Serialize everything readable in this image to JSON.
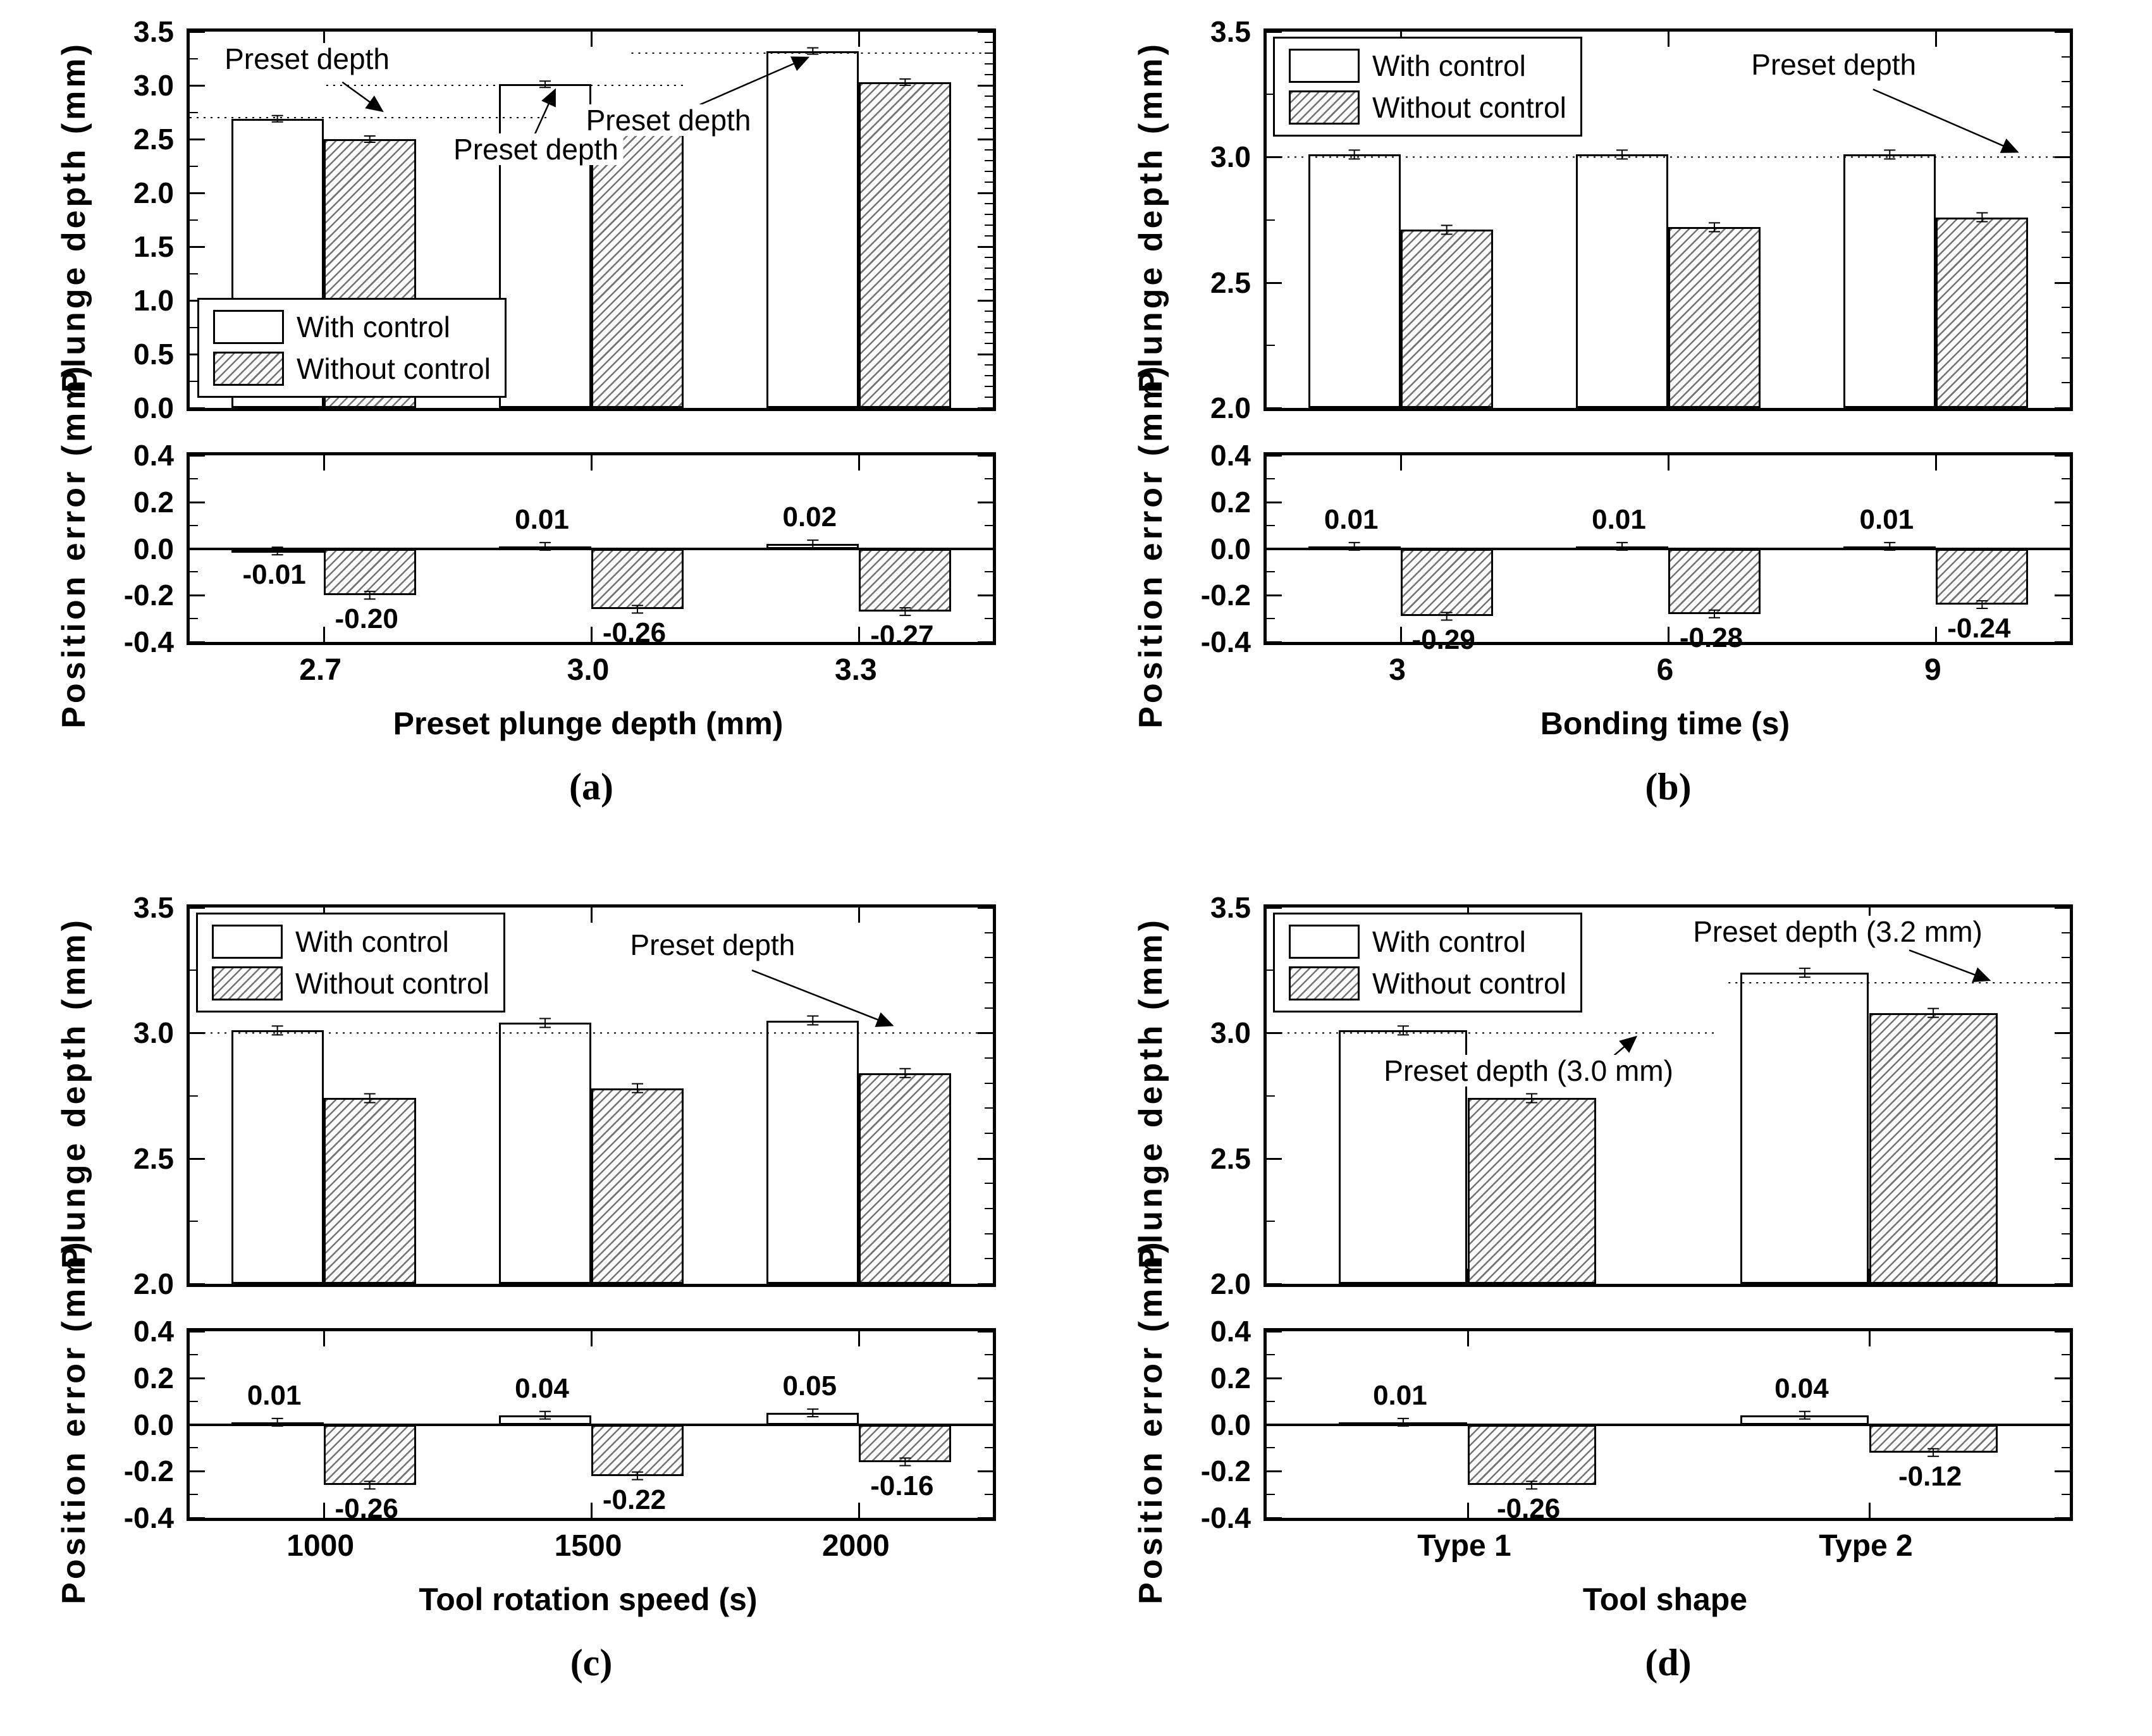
{
  "legend": {
    "items": [
      {
        "label": "With control",
        "style": "plain"
      },
      {
        "label": "Without control",
        "style": "hatch"
      }
    ]
  },
  "colors": {
    "bar_fill": "#ffffff",
    "bar_edge": "#000000",
    "hatch_line": "#000000",
    "dashed_line": "#000000"
  },
  "chart_data": [
    {
      "panel": "a",
      "label": "(a)",
      "depth_chart": {
        "type": "bar",
        "ylabel": "Plunge depth (mm)",
        "ylim": [
          0.0,
          3.5
        ],
        "ytick_step": 0.5,
        "categories": [
          "2.7",
          "3.0",
          "3.3"
        ],
        "series": [
          {
            "name": "With control",
            "style": "plain",
            "values": [
              2.69,
              3.01,
              3.32
            ]
          },
          {
            "name": "Without control",
            "style": "hatch",
            "values": [
              2.5,
              2.74,
              3.03
            ]
          }
        ],
        "preset_lines": [
          {
            "value": 2.7,
            "from": 0.0,
            "to": 0.45
          },
          {
            "value": 3.0,
            "from": 0.17,
            "to": 0.62
          },
          {
            "value": 3.3,
            "from": 0.55,
            "to": 1.0
          }
        ],
        "annotations": [
          {
            "text": "Preset depth",
            "tx": 0.15,
            "tv": 3.2,
            "ax0": 0.19,
            "av0": 3.03,
            "ax1": 0.24,
            "av1": 2.76
          },
          {
            "text": "Preset depth",
            "tx": 0.435,
            "tv": 2.36,
            "ax0": 0.43,
            "av0": 2.55,
            "ax1": 0.455,
            "av1": 2.96
          },
          {
            "text": "Preset depth",
            "tx": 0.6,
            "tv": 2.63,
            "ax0": 0.635,
            "av0": 2.82,
            "ax1": 0.77,
            "av1": 3.26
          }
        ],
        "legend_position": "bottom-left"
      },
      "error_chart": {
        "type": "bar",
        "ylabel": "Position error (mm)",
        "ylim": [
          -0.4,
          0.4
        ],
        "ytick_step": 0.2,
        "categories": [
          "2.7",
          "3.0",
          "3.3"
        ],
        "xlabel": "Preset plunge depth (mm)",
        "series": [
          {
            "name": "With control",
            "style": "plain",
            "values": [
              -0.01,
              0.01,
              0.02
            ],
            "labels": [
              "-0.01",
              "0.01",
              "0.02"
            ]
          },
          {
            "name": "Without control",
            "style": "hatch",
            "values": [
              -0.2,
              -0.26,
              -0.27
            ],
            "labels": [
              "-0.20",
              "-0.26",
              "-0.27"
            ]
          }
        ]
      }
    },
    {
      "panel": "b",
      "label": "(b)",
      "depth_chart": {
        "type": "bar",
        "ylabel": "Plunge depth (mm)",
        "ylim": [
          2.0,
          3.5
        ],
        "ytick_step": 0.5,
        "categories": [
          "3",
          "6",
          "9"
        ],
        "series": [
          {
            "name": "With control",
            "style": "plain",
            "values": [
              3.01,
              3.01,
              3.01
            ]
          },
          {
            "name": "Without control",
            "style": "hatch",
            "values": [
              2.71,
              2.72,
              2.76
            ]
          }
        ],
        "preset_lines": [
          {
            "value": 3.0,
            "from": 0.0,
            "to": 1.0
          }
        ],
        "annotations": [
          {
            "text": "Preset depth",
            "tx": 0.71,
            "tv": 3.35,
            "ax0": 0.755,
            "av0": 3.27,
            "ax1": 0.935,
            "av1": 3.02
          }
        ],
        "legend_position": "top-left"
      },
      "error_chart": {
        "type": "bar",
        "ylabel": "Position error (mm)",
        "ylim": [
          -0.4,
          0.4
        ],
        "ytick_step": 0.2,
        "categories": [
          "3",
          "6",
          "9"
        ],
        "xlabel": "Bonding time (s)",
        "series": [
          {
            "name": "With control",
            "style": "plain",
            "values": [
              0.01,
              0.01,
              0.01
            ],
            "labels": [
              "0.01",
              "0.01",
              "0.01"
            ]
          },
          {
            "name": "Without control",
            "style": "hatch",
            "values": [
              -0.29,
              -0.28,
              -0.24
            ],
            "labels": [
              "-0.29",
              "-0.28",
              "-0.24"
            ]
          }
        ]
      }
    },
    {
      "panel": "c",
      "label": "(c)",
      "depth_chart": {
        "type": "bar",
        "ylabel": "Plunge depth (mm)",
        "ylim": [
          2.0,
          3.5
        ],
        "ytick_step": 0.5,
        "categories": [
          "1000",
          "1500",
          "2000"
        ],
        "series": [
          {
            "name": "With control",
            "style": "plain",
            "values": [
              3.01,
              3.04,
              3.05
            ]
          },
          {
            "name": "Without control",
            "style": "hatch",
            "values": [
              2.74,
              2.78,
              2.84
            ]
          }
        ],
        "preset_lines": [
          {
            "value": 3.0,
            "from": 0.0,
            "to": 1.0
          }
        ],
        "annotations": [
          {
            "text": "Preset depth",
            "tx": 0.655,
            "tv": 3.33,
            "ax0": 0.7,
            "av0": 3.25,
            "ax1": 0.875,
            "av1": 3.03
          }
        ],
        "legend_position": "top-left"
      },
      "error_chart": {
        "type": "bar",
        "ylabel": "Position error (mm)",
        "ylim": [
          -0.4,
          0.4
        ],
        "ytick_step": 0.2,
        "categories": [
          "1000",
          "1500",
          "2000"
        ],
        "xlabel": "Tool rotation speed (s)",
        "series": [
          {
            "name": "With control",
            "style": "plain",
            "values": [
              0.01,
              0.04,
              0.05
            ],
            "labels": [
              "0.01",
              "0.04",
              "0.05"
            ]
          },
          {
            "name": "Without control",
            "style": "hatch",
            "values": [
              -0.26,
              -0.22,
              -0.16
            ],
            "labels": [
              "-0.26",
              "-0.22",
              "-0.16"
            ]
          }
        ]
      }
    },
    {
      "panel": "d",
      "label": "(d)",
      "depth_chart": {
        "type": "bar",
        "ylabel": "Plunge depth (mm)",
        "ylim": [
          2.0,
          3.5
        ],
        "ytick_step": 0.5,
        "categories": [
          "Type 1",
          "Type 2"
        ],
        "series": [
          {
            "name": "With control",
            "style": "plain",
            "values": [
              3.01,
              3.24
            ]
          },
          {
            "name": "Without control",
            "style": "hatch",
            "values": [
              2.74,
              3.08
            ]
          }
        ],
        "preset_lines": [
          {
            "value": 3.0,
            "from": 0.0,
            "to": 0.56
          },
          {
            "value": 3.2,
            "from": 0.575,
            "to": 1.0
          }
        ],
        "annotations": [
          {
            "text": "Preset depth (3.0 mm)",
            "tx": 0.33,
            "tv": 2.83,
            "ax0": 0.425,
            "av0": 2.89,
            "ax1": 0.46,
            "av1": 2.985
          },
          {
            "text": "Preset depth (3.2 mm)",
            "tx": 0.715,
            "tv": 3.385,
            "ax0": 0.8,
            "av0": 3.33,
            "ax1": 0.9,
            "av1": 3.21
          }
        ],
        "legend_position": "top-left"
      },
      "error_chart": {
        "type": "bar",
        "ylabel": "Position error (mm)",
        "ylim": [
          -0.4,
          0.4
        ],
        "ytick_step": 0.2,
        "categories": [
          "Type 1",
          "Type 2"
        ],
        "xlabel": "Tool shape",
        "series": [
          {
            "name": "With control",
            "style": "plain",
            "values": [
              0.01,
              0.04
            ],
            "labels": [
              "0.01",
              "0.04"
            ]
          },
          {
            "name": "Without control",
            "style": "hatch",
            "values": [
              -0.26,
              -0.12
            ],
            "labels": [
              "-0.26",
              "-0.12"
            ]
          }
        ]
      }
    }
  ]
}
